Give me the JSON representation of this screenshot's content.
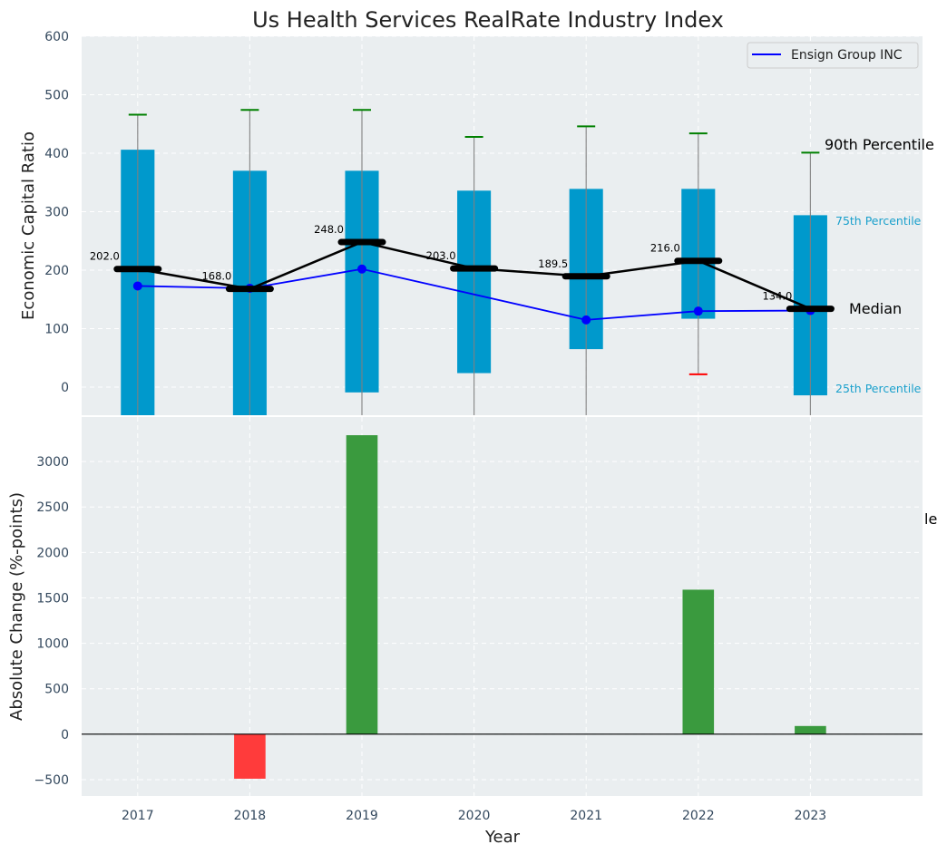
{
  "chart_data": [
    {
      "type": "box-percentile",
      "title": "Us Health Services RealRate Industry Index",
      "xlabel": "",
      "ylabel": "Economic Capital Ratio",
      "xlim": [
        2016.5,
        2024.0
      ],
      "ylim": [
        -48,
        600
      ],
      "yticks": [
        0,
        100,
        200,
        300,
        400,
        500,
        600
      ],
      "grid": true,
      "categories": [
        "2017",
        "2018",
        "2019",
        "2020",
        "2021",
        "2022",
        "2023"
      ],
      "percentile_90": [
        466,
        474,
        474,
        428,
        446,
        434,
        401
      ],
      "percentile_75": [
        406,
        370,
        370,
        336,
        339,
        339,
        294
      ],
      "median": [
        202.0,
        168.0,
        248.0,
        203.0,
        189.5,
        216.0,
        134.0
      ],
      "median_labels": [
        "202.0",
        "168.0",
        "248.0",
        "203.0",
        "189.5",
        "216.0",
        "134.0"
      ],
      "percentile_25": [
        -60,
        -60,
        -9,
        24,
        65,
        117,
        -14
      ],
      "percentile_10": [
        -120,
        -120,
        -120,
        -120,
        -120,
        22,
        -120
      ],
      "series": [
        {
          "name": "Ensign Group INC",
          "color": "#0000ff",
          "values": [
            173,
            169,
            202,
            null,
            115,
            130,
            131
          ]
        }
      ],
      "legend": {
        "position": "top-right",
        "entries": [
          "Ensign Group INC"
        ]
      },
      "annotations": {
        "p90": "90th Percentile",
        "p75": "75th Percentile",
        "median": "Median",
        "p25": "25th Percentile"
      },
      "colors": {
        "box": "#0099cc",
        "median_line": "#000000",
        "whisker_top": "#008000",
        "whisker_bottom": "#ff0000",
        "whisker_stem": "#7f7f7f",
        "panel_bg": "#eaeef0"
      }
    },
    {
      "type": "bar",
      "title": "",
      "xlabel": "Year",
      "ylabel": "Absolute Change (%-points)",
      "xlim": [
        2016.5,
        2024.0
      ],
      "ylim": [
        -680,
        3490
      ],
      "yticks": [
        -500,
        0,
        500,
        1000,
        1500,
        2000,
        2500,
        3000
      ],
      "ytick_labels": [
        "−500",
        "0",
        "500",
        "1000",
        "1500",
        "2000",
        "2500",
        "3000"
      ],
      "grid": true,
      "categories": [
        "2017",
        "2018",
        "2019",
        "2020",
        "2021",
        "2022",
        "2023"
      ],
      "values": [
        0,
        -490,
        3290,
        0,
        0,
        1590,
        90
      ],
      "colors": {
        "positive": "#3a9a3e",
        "negative": "#ff3b3b"
      },
      "clipped_annotation": "le"
    }
  ]
}
